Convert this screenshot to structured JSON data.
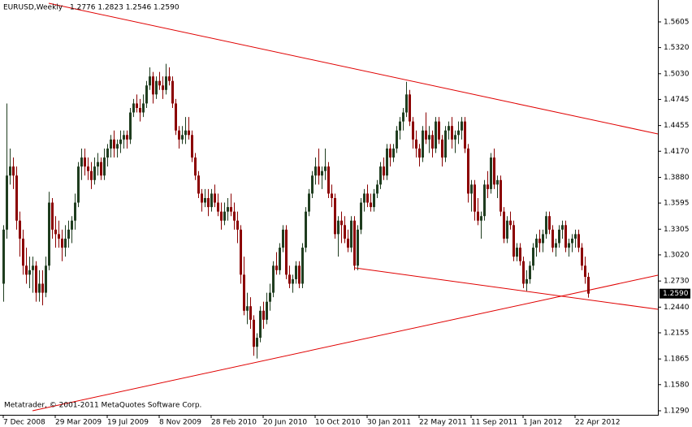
{
  "chart_data": {
    "type": "candlestick",
    "title": "EURUSD,Weekly",
    "ohlc_label": "1.2776 1.2823 1.2546 1.2590",
    "footer": "Metatrader, © 2001-2011 MetaQuotes Software Corp.",
    "last_price_label": "1.2590",
    "bull_color": "#1f3d1f",
    "bear_color": "#8b0000",
    "ylim": [
      1.1245,
      1.5848
    ],
    "yticks": [
      {
        "value": 1.5605,
        "label": "1.5605"
      },
      {
        "value": 1.532,
        "label": "1.5320"
      },
      {
        "value": 1.503,
        "label": "1.5030"
      },
      {
        "value": 1.4745,
        "label": "1.4745"
      },
      {
        "value": 1.4455,
        "label": "1.4455"
      },
      {
        "value": 1.417,
        "label": "1.4170"
      },
      {
        "value": 1.388,
        "label": "1.3880"
      },
      {
        "value": 1.3595,
        "label": "1.3595"
      },
      {
        "value": 1.3305,
        "label": "1.3305"
      },
      {
        "value": 1.302,
        "label": "1.3020"
      },
      {
        "value": 1.273,
        "label": "1.2730"
      },
      {
        "value": 1.244,
        "label": "1.2440"
      },
      {
        "value": 1.2155,
        "label": "1.2155"
      },
      {
        "value": 1.1865,
        "label": "1.1865"
      },
      {
        "value": 1.158,
        "label": "1.1580"
      },
      {
        "value": 1.129,
        "label": "1.1290"
      }
    ],
    "categories": [
      "7 Dec 2008",
      null,
      null,
      null,
      null,
      null,
      null,
      null,
      null,
      null,
      null,
      null,
      null,
      null,
      null,
      null,
      "29 Mar 2009",
      null,
      null,
      null,
      null,
      null,
      null,
      null,
      null,
      null,
      null,
      null,
      null,
      null,
      null,
      null,
      "19 Jul 2009",
      null,
      null,
      null,
      null,
      null,
      null,
      null,
      null,
      null,
      null,
      null,
      null,
      null,
      null,
      null,
      "8 Nov 2009",
      null,
      null,
      null,
      null,
      null,
      null,
      null,
      null,
      null,
      null,
      null,
      null,
      null,
      null,
      null,
      "28 Feb 2010",
      null,
      null,
      null,
      null,
      null,
      null,
      null,
      null,
      null,
      null,
      null,
      null,
      null,
      null,
      null,
      "20 Jun 2010",
      null,
      null,
      null,
      null,
      null,
      null,
      null,
      null,
      null,
      null,
      null,
      null,
      null,
      null,
      null,
      "10 Oct 2010",
      null,
      null,
      null,
      null,
      null,
      null,
      null,
      null,
      null,
      null,
      null,
      null,
      null,
      null,
      null,
      "30 Jan 2011",
      null,
      null,
      null,
      null,
      null,
      null,
      null,
      null,
      null,
      null,
      null,
      null,
      null,
      null,
      null,
      "22 May 2011",
      null,
      null,
      null,
      null,
      null,
      null,
      null,
      null,
      null,
      null,
      null,
      null,
      null,
      null,
      null,
      "11 Sep 2011",
      null,
      null,
      null,
      null,
      null,
      null,
      null,
      null,
      null,
      null,
      null,
      null,
      null,
      null,
      null,
      "1 Jan 2012",
      null,
      null,
      null,
      null,
      null,
      null,
      null,
      null,
      null,
      null,
      null,
      null,
      null,
      null,
      null,
      "22 Apr 2012",
      null,
      null,
      null,
      null
    ],
    "candles": [
      [
        1.27,
        1.335,
        1.25,
        1.33
      ],
      [
        1.33,
        1.47,
        1.32,
        1.39
      ],
      [
        1.39,
        1.42,
        1.38,
        1.4
      ],
      [
        1.4,
        1.41,
        1.375,
        1.39
      ],
      [
        1.39,
        1.4,
        1.33,
        1.34
      ],
      [
        1.34,
        1.35,
        1.3,
        1.32
      ],
      [
        1.32,
        1.33,
        1.28,
        1.29
      ],
      [
        1.29,
        1.31,
        1.27,
        1.28
      ],
      [
        1.28,
        1.3,
        1.265,
        1.285
      ],
      [
        1.285,
        1.3,
        1.26,
        1.29
      ],
      [
        1.29,
        1.295,
        1.25,
        1.26
      ],
      [
        1.26,
        1.285,
        1.25,
        1.27
      ],
      [
        1.27,
        1.285,
        1.246,
        1.26
      ],
      [
        1.26,
        1.3,
        1.255,
        1.29
      ],
      [
        1.29,
        1.372,
        1.285,
        1.36
      ],
      [
        1.36,
        1.365,
        1.32,
        1.33
      ],
      [
        1.33,
        1.345,
        1.31,
        1.325
      ],
      [
        1.325,
        1.34,
        1.31,
        1.32
      ],
      [
        1.32,
        1.33,
        1.295,
        1.31
      ],
      [
        1.31,
        1.335,
        1.3,
        1.32
      ],
      [
        1.32,
        1.34,
        1.31,
        1.33
      ],
      [
        1.33,
        1.345,
        1.315,
        1.34
      ],
      [
        1.34,
        1.37,
        1.33,
        1.36
      ],
      [
        1.36,
        1.405,
        1.355,
        1.4
      ],
      [
        1.4,
        1.42,
        1.385,
        1.41
      ],
      [
        1.41,
        1.42,
        1.39,
        1.4
      ],
      [
        1.4,
        1.41,
        1.385,
        1.395
      ],
      [
        1.395,
        1.405,
        1.375,
        1.385
      ],
      [
        1.385,
        1.41,
        1.38,
        1.4
      ],
      [
        1.4,
        1.415,
        1.39,
        1.405
      ],
      [
        1.405,
        1.41,
        1.385,
        1.39
      ],
      [
        1.39,
        1.42,
        1.385,
        1.41
      ],
      [
        1.41,
        1.425,
        1.4,
        1.42
      ],
      [
        1.42,
        1.435,
        1.41,
        1.43
      ],
      [
        1.43,
        1.44,
        1.41,
        1.42
      ],
      [
        1.42,
        1.43,
        1.41,
        1.425
      ],
      [
        1.425,
        1.44,
        1.415,
        1.43
      ],
      [
        1.43,
        1.44,
        1.42,
        1.435
      ],
      [
        1.435,
        1.44,
        1.42,
        1.43
      ],
      [
        1.43,
        1.465,
        1.425,
        1.46
      ],
      [
        1.46,
        1.475,
        1.455,
        1.47
      ],
      [
        1.47,
        1.48,
        1.46,
        1.465
      ],
      [
        1.465,
        1.475,
        1.45,
        1.46
      ],
      [
        1.46,
        1.48,
        1.455,
        1.47
      ],
      [
        1.47,
        1.495,
        1.465,
        1.49
      ],
      [
        1.49,
        1.51,
        1.485,
        1.5
      ],
      [
        1.5,
        1.505,
        1.47,
        1.48
      ],
      [
        1.48,
        1.5,
        1.475,
        1.495
      ],
      [
        1.495,
        1.505,
        1.485,
        1.49
      ],
      [
        1.49,
        1.5,
        1.475,
        1.485
      ],
      [
        1.485,
        1.514,
        1.48,
        1.5
      ],
      [
        1.5,
        1.51,
        1.49,
        1.495
      ],
      [
        1.495,
        1.5,
        1.465,
        1.47
      ],
      [
        1.47,
        1.475,
        1.435,
        1.44
      ],
      [
        1.44,
        1.445,
        1.42,
        1.43
      ],
      [
        1.43,
        1.445,
        1.425,
        1.435
      ],
      [
        1.435,
        1.455,
        1.425,
        1.44
      ],
      [
        1.44,
        1.455,
        1.43,
        1.435
      ],
      [
        1.435,
        1.44,
        1.405,
        1.41
      ],
      [
        1.41,
        1.415,
        1.385,
        1.39
      ],
      [
        1.39,
        1.395,
        1.365,
        1.37
      ],
      [
        1.37,
        1.375,
        1.35,
        1.36
      ],
      [
        1.36,
        1.375,
        1.355,
        1.365
      ],
      [
        1.365,
        1.375,
        1.345,
        1.355
      ],
      [
        1.355,
        1.375,
        1.35,
        1.37
      ],
      [
        1.37,
        1.38,
        1.355,
        1.36
      ],
      [
        1.36,
        1.37,
        1.345,
        1.35
      ],
      [
        1.35,
        1.36,
        1.33,
        1.34
      ],
      [
        1.34,
        1.36,
        1.335,
        1.35
      ],
      [
        1.35,
        1.365,
        1.34,
        1.355
      ],
      [
        1.355,
        1.37,
        1.345,
        1.35
      ],
      [
        1.35,
        1.36,
        1.33,
        1.34
      ],
      [
        1.34,
        1.35,
        1.315,
        1.33
      ],
      [
        1.33,
        1.335,
        1.27,
        1.28
      ],
      [
        1.28,
        1.3,
        1.235,
        1.24
      ],
      [
        1.24,
        1.26,
        1.225,
        1.245
      ],
      [
        1.245,
        1.255,
        1.22,
        1.23
      ],
      [
        1.23,
        1.235,
        1.19,
        1.2
      ],
      [
        1.2,
        1.215,
        1.187,
        1.21
      ],
      [
        1.21,
        1.245,
        1.205,
        1.24
      ],
      [
        1.24,
        1.25,
        1.22,
        1.23
      ],
      [
        1.23,
        1.26,
        1.225,
        1.25
      ],
      [
        1.25,
        1.27,
        1.24,
        1.26
      ],
      [
        1.26,
        1.295,
        1.255,
        1.29
      ],
      [
        1.29,
        1.305,
        1.28,
        1.285
      ],
      [
        1.285,
        1.315,
        1.28,
        1.31
      ],
      [
        1.31,
        1.335,
        1.305,
        1.33
      ],
      [
        1.33,
        1.335,
        1.275,
        1.28
      ],
      [
        1.28,
        1.29,
        1.265,
        1.27
      ],
      [
        1.27,
        1.28,
        1.26,
        1.275
      ],
      [
        1.275,
        1.295,
        1.27,
        1.29
      ],
      [
        1.29,
        1.295,
        1.265,
        1.27
      ],
      [
        1.27,
        1.315,
        1.265,
        1.31
      ],
      [
        1.31,
        1.355,
        1.305,
        1.35
      ],
      [
        1.35,
        1.375,
        1.345,
        1.37
      ],
      [
        1.37,
        1.395,
        1.365,
        1.39
      ],
      [
        1.39,
        1.41,
        1.38,
        1.4
      ],
      [
        1.4,
        1.42,
        1.38,
        1.39
      ],
      [
        1.39,
        1.4,
        1.375,
        1.395
      ],
      [
        1.395,
        1.42,
        1.385,
        1.4
      ],
      [
        1.4,
        1.405,
        1.365,
        1.37
      ],
      [
        1.37,
        1.38,
        1.355,
        1.365
      ],
      [
        1.365,
        1.37,
        1.32,
        1.325
      ],
      [
        1.325,
        1.345,
        1.3,
        1.34
      ],
      [
        1.34,
        1.35,
        1.315,
        1.335
      ],
      [
        1.335,
        1.345,
        1.315,
        1.32
      ],
      [
        1.32,
        1.33,
        1.305,
        1.31
      ],
      [
        1.31,
        1.345,
        1.305,
        1.34
      ],
      [
        1.34,
        1.345,
        1.285,
        1.29
      ],
      [
        1.29,
        1.335,
        1.285,
        1.33
      ],
      [
        1.33,
        1.365,
        1.325,
        1.36
      ],
      [
        1.36,
        1.375,
        1.35,
        1.37
      ],
      [
        1.37,
        1.38,
        1.355,
        1.36
      ],
      [
        1.36,
        1.37,
        1.35,
        1.355
      ],
      [
        1.355,
        1.375,
        1.35,
        1.37
      ],
      [
        1.37,
        1.385,
        1.365,
        1.38
      ],
      [
        1.38,
        1.405,
        1.375,
        1.4
      ],
      [
        1.4,
        1.41,
        1.385,
        1.39
      ],
      [
        1.39,
        1.425,
        1.385,
        1.42
      ],
      [
        1.42,
        1.425,
        1.4,
        1.41
      ],
      [
        1.41,
        1.425,
        1.405,
        1.42
      ],
      [
        1.42,
        1.445,
        1.415,
        1.44
      ],
      [
        1.44,
        1.455,
        1.43,
        1.45
      ],
      [
        1.45,
        1.465,
        1.44,
        1.46
      ],
      [
        1.46,
        1.494,
        1.455,
        1.48
      ],
      [
        1.48,
        1.485,
        1.445,
        1.45
      ],
      [
        1.45,
        1.455,
        1.42,
        1.43
      ],
      [
        1.43,
        1.44,
        1.41,
        1.42
      ],
      [
        1.42,
        1.425,
        1.4,
        1.41
      ],
      [
        1.41,
        1.445,
        1.405,
        1.44
      ],
      [
        1.44,
        1.46,
        1.425,
        1.43
      ],
      [
        1.43,
        1.445,
        1.415,
        1.435
      ],
      [
        1.435,
        1.44,
        1.41,
        1.42
      ],
      [
        1.42,
        1.455,
        1.415,
        1.45
      ],
      [
        1.45,
        1.455,
        1.425,
        1.43
      ],
      [
        1.43,
        1.435,
        1.4,
        1.41
      ],
      [
        1.41,
        1.445,
        1.405,
        1.44
      ],
      [
        1.44,
        1.45,
        1.43,
        1.445
      ],
      [
        1.445,
        1.455,
        1.42,
        1.43
      ],
      [
        1.43,
        1.44,
        1.415,
        1.435
      ],
      [
        1.435,
        1.45,
        1.425,
        1.44
      ],
      [
        1.44,
        1.455,
        1.43,
        1.45
      ],
      [
        1.45,
        1.455,
        1.415,
        1.42
      ],
      [
        1.42,
        1.425,
        1.36,
        1.37
      ],
      [
        1.37,
        1.385,
        1.35,
        1.38
      ],
      [
        1.38,
        1.385,
        1.34,
        1.35
      ],
      [
        1.35,
        1.365,
        1.335,
        1.34
      ],
      [
        1.34,
        1.35,
        1.32,
        1.345
      ],
      [
        1.345,
        1.385,
        1.34,
        1.38
      ],
      [
        1.38,
        1.395,
        1.365,
        1.375
      ],
      [
        1.375,
        1.415,
        1.37,
        1.41
      ],
      [
        1.41,
        1.42,
        1.375,
        1.38
      ],
      [
        1.38,
        1.39,
        1.365,
        1.385
      ],
      [
        1.385,
        1.39,
        1.345,
        1.35
      ],
      [
        1.35,
        1.355,
        1.315,
        1.32
      ],
      [
        1.32,
        1.345,
        1.315,
        1.34
      ],
      [
        1.34,
        1.35,
        1.33,
        1.335
      ],
      [
        1.335,
        1.34,
        1.295,
        1.3
      ],
      [
        1.3,
        1.315,
        1.295,
        1.31
      ],
      [
        1.31,
        1.315,
        1.29,
        1.295
      ],
      [
        1.295,
        1.3,
        1.265,
        1.27
      ],
      [
        1.27,
        1.285,
        1.262,
        1.275
      ],
      [
        1.275,
        1.295,
        1.27,
        1.29
      ],
      [
        1.29,
        1.315,
        1.285,
        1.31
      ],
      [
        1.31,
        1.325,
        1.3,
        1.32
      ],
      [
        1.32,
        1.33,
        1.305,
        1.315
      ],
      [
        1.315,
        1.33,
        1.305,
        1.325
      ],
      [
        1.325,
        1.35,
        1.32,
        1.345
      ],
      [
        1.345,
        1.35,
        1.325,
        1.33
      ],
      [
        1.33,
        1.335,
        1.305,
        1.31
      ],
      [
        1.31,
        1.32,
        1.3,
        1.315
      ],
      [
        1.315,
        1.335,
        1.31,
        1.33
      ],
      [
        1.33,
        1.34,
        1.32,
        1.335
      ],
      [
        1.335,
        1.34,
        1.305,
        1.31
      ],
      [
        1.31,
        1.32,
        1.3,
        1.315
      ],
      [
        1.315,
        1.325,
        1.305,
        1.32
      ],
      [
        1.32,
        1.33,
        1.31,
        1.325
      ],
      [
        1.325,
        1.33,
        1.305,
        1.31
      ],
      [
        1.31,
        1.315,
        1.285,
        1.29
      ],
      [
        1.29,
        1.3,
        1.27,
        1.2776
      ],
      [
        1.2776,
        1.2823,
        1.2546,
        1.259
      ]
    ]
  }
}
